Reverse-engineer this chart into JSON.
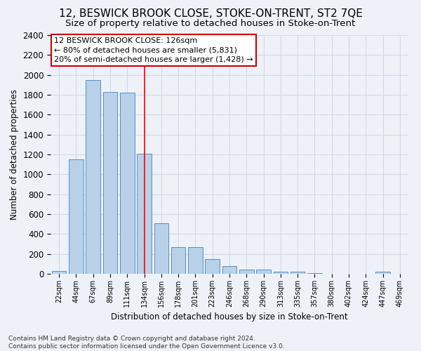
{
  "title": "12, BESWICK BROOK CLOSE, STOKE-ON-TRENT, ST2 7QE",
  "subtitle": "Size of property relative to detached houses in Stoke-on-Trent",
  "xlabel": "Distribution of detached houses by size in Stoke-on-Trent",
  "ylabel": "Number of detached properties",
  "categories": [
    "22sqm",
    "44sqm",
    "67sqm",
    "89sqm",
    "111sqm",
    "134sqm",
    "156sqm",
    "178sqm",
    "201sqm",
    "223sqm",
    "246sqm",
    "268sqm",
    "290sqm",
    "313sqm",
    "335sqm",
    "357sqm",
    "380sqm",
    "402sqm",
    "424sqm",
    "447sqm",
    "469sqm"
  ],
  "values": [
    25,
    1150,
    1950,
    1830,
    1820,
    1210,
    510,
    265,
    265,
    150,
    80,
    45,
    45,
    22,
    20,
    10,
    0,
    0,
    0,
    20,
    0
  ],
  "bar_color": "#b8d0e8",
  "bar_edge_color": "#5590c8",
  "grid_color": "#d0d8e8",
  "background_color": "#eef2f8",
  "red_line_index": 5,
  "annotation_text": "12 BESWICK BROOK CLOSE: 126sqm\n← 80% of detached houses are smaller (5,831)\n20% of semi-detached houses are larger (1,428) →",
  "annotation_box_color": "#ffffff",
  "annotation_border_color": "#cc0000",
  "footnote": "Contains HM Land Registry data © Crown copyright and database right 2024.\nContains public sector information licensed under the Open Government Licence v3.0.",
  "ylim": [
    0,
    2400
  ],
  "yticks": [
    0,
    200,
    400,
    600,
    800,
    1000,
    1200,
    1400,
    1600,
    1800,
    2000,
    2200,
    2400
  ],
  "title_fontsize": 11,
  "subtitle_fontsize": 9.5
}
